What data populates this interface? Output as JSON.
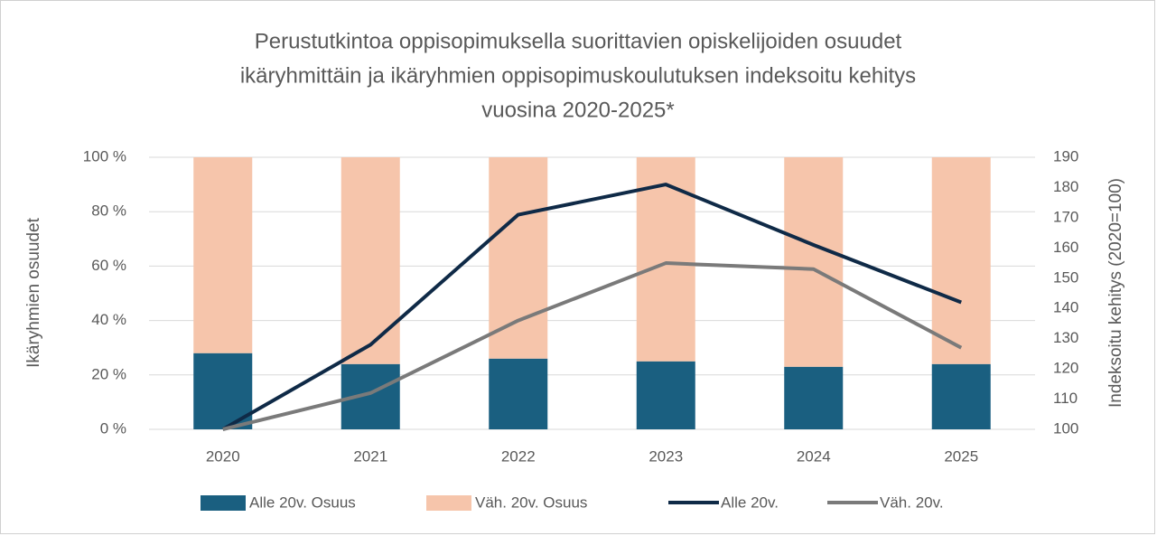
{
  "chart_data": {
    "type": "bar-line",
    "title": [
      "Perustutkintoa oppisopimuksella suorittavien opiskelijoiden osuudet",
      "ikäryhmittäin ja ikäryhmien oppisopimuskoulutuksen indeksoitu kehitys",
      "vuosina 2020-2025*"
    ],
    "ylabel": "Ikäryhmien osuudet",
    "y2label": "Indeksoitu kehitys (2020=100)",
    "categories": [
      "2020",
      "2021",
      "2022",
      "2023",
      "2024",
      "2025"
    ],
    "series": [
      {
        "name": "Alle 20v. Osuus",
        "type": "bar",
        "color": "#1a5f80",
        "values": [
          28,
          24,
          26,
          25,
          23,
          24
        ]
      },
      {
        "name": "Väh. 20v. Osuus",
        "type": "bar",
        "color": "#f6c5ab",
        "values": [
          72,
          76,
          74,
          75,
          77,
          76
        ]
      },
      {
        "name": "Alle 20v.",
        "type": "line",
        "axis": "y2",
        "color": "#0f2a47",
        "values": [
          100,
          128,
          171,
          181,
          161,
          142
        ]
      },
      {
        "name": "Väh. 20v.",
        "type": "line",
        "axis": "y2",
        "color": "#7a7a7a",
        "values": [
          100,
          112,
          136,
          155,
          153,
          127
        ]
      }
    ],
    "stacked": true,
    "ylim": [
      0,
      100
    ],
    "yticks": [
      {
        "value": 0,
        "label": "0 %"
      },
      {
        "value": 20,
        "label": "20 %"
      },
      {
        "value": 40,
        "label": "40 %"
      },
      {
        "value": 60,
        "label": "60 %"
      },
      {
        "value": 80,
        "label": "80 %"
      },
      {
        "value": 100,
        "label": "100 %"
      }
    ],
    "y2lim": [
      100,
      190
    ],
    "y2ticks": [
      100,
      110,
      120,
      130,
      140,
      150,
      160,
      170,
      180,
      190
    ],
    "legend": "bottom"
  }
}
